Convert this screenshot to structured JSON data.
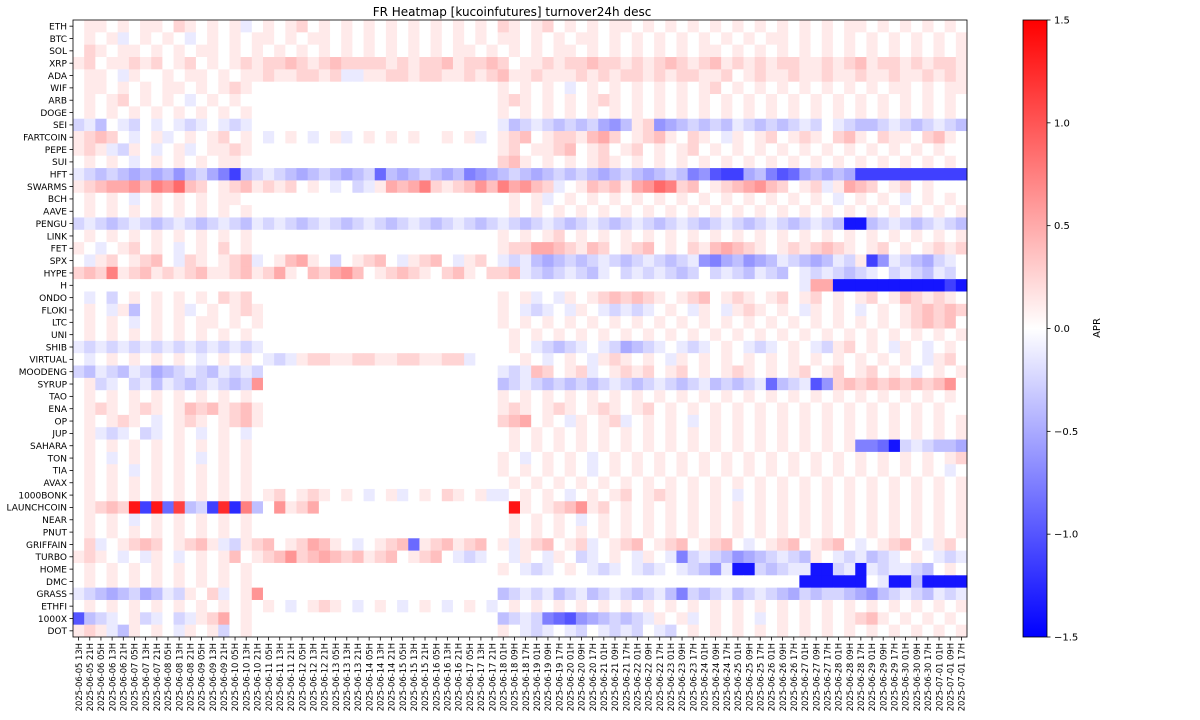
{
  "chart_data": {
    "type": "heatmap",
    "title": "FR Heatmap [kucoinfutures] turnover24h desc",
    "rows": [
      "ETH",
      "BTC",
      "SOL",
      "XRP",
      "ADA",
      "WIF",
      "ARB",
      "DOGE",
      "SEI",
      "FARTCOIN",
      "PEPE",
      "SUI",
      "HFT",
      "SWARMS",
      "BCH",
      "AAVE",
      "PENGU",
      "LINK",
      "FET",
      "SPX",
      "HYPE",
      "H",
      "ONDO",
      "FLOKI",
      "LTC",
      "UNI",
      "SHIB",
      "VIRTUAL",
      "MOODENG",
      "SYRUP",
      "TAO",
      "ENA",
      "OP",
      "JUP",
      "SAHARA",
      "TON",
      "TIA",
      "AVAX",
      "1000BONK",
      "LAUNCHCOIN",
      "NEAR",
      "PNUT",
      "GRIFFAIN",
      "TURBO",
      "HOME",
      "DMC",
      "GRASS",
      "ETHFI",
      "1000X",
      "DOT"
    ],
    "columns": [
      "2025-06-05 13H",
      "2025-06-05 21H",
      "2025-06-06 05H",
      "2025-06-06 13H",
      "2025-06-06 21H",
      "2025-06-07 05H",
      "2025-06-07 13H",
      "2025-06-07 21H",
      "2025-06-08 05H",
      "2025-06-08 13H",
      "2025-06-08 21H",
      "2025-06-09 05H",
      "2025-06-09 13H",
      "2025-06-09 21H",
      "2025-06-10 05H",
      "2025-06-10 13H",
      "2025-06-10 21H",
      "2025-06-11 05H",
      "2025-06-11 13H",
      "2025-06-11 21H",
      "2025-06-12 05H",
      "2025-06-12 13H",
      "2025-06-12 21H",
      "2025-06-13 05H",
      "2025-06-13 13H",
      "2025-06-13 21H",
      "2025-06-14 05H",
      "2025-06-14 13H",
      "2025-06-14 21H",
      "2025-06-15 05H",
      "2025-06-15 13H",
      "2025-06-15 21H",
      "2025-06-16 05H",
      "2025-06-16 13H",
      "2025-06-16 21H",
      "2025-06-17 05H",
      "2025-06-17 13H",
      "2025-06-17 21H",
      "2025-06-18 01H",
      "2025-06-18 09H",
      "2025-06-18 17H",
      "2025-06-19 01H",
      "2025-06-19 09H",
      "2025-06-19 17H",
      "2025-06-20 01H",
      "2025-06-20 09H",
      "2025-06-20 17H",
      "2025-06-21 01H",
      "2025-06-21 09H",
      "2025-06-21 17H",
      "2025-06-22 01H",
      "2025-06-22 09H",
      "2025-06-22 17H",
      "2025-06-23 01H",
      "2025-06-23 09H",
      "2025-06-23 17H",
      "2025-06-24 01H",
      "2025-06-24 09H",
      "2025-06-24 17H",
      "2025-06-25 01H",
      "2025-06-25 09H",
      "2025-06-25 17H",
      "2025-06-26 01H",
      "2025-06-26 09H",
      "2025-06-26 17H",
      "2025-06-27 01H",
      "2025-06-27 09H",
      "2025-06-27 17H",
      "2025-06-28 01H",
      "2025-06-28 09H",
      "2025-06-28 17H",
      "2025-06-29 01H",
      "2025-06-29 09H",
      "2025-06-29 17H",
      "2025-06-30 01H",
      "2025-06-30 09H",
      "2025-06-30 17H",
      "2025-07-01 01H",
      "2025-07-01 09H",
      "2025-07-01 17H"
    ],
    "value_range": [
      -1.5,
      1.5
    ],
    "colormap": "bwr",
    "colormap_colors": [
      "#0000ff",
      "#ffffff",
      "#ff0000"
    ],
    "colorbar": {
      "label": "APR",
      "ticks": [
        1.5,
        1.0,
        0.5,
        0.0,
        -0.5,
        -1.0,
        -1.5
      ],
      "tick_labels": [
        "1.5",
        "1.0",
        "0.5",
        "0.0",
        "−0.5",
        "−1.0",
        "−1.5"
      ]
    },
    "cell_value_encoding": "one string per row; each character is one column cell; A=-1.5 ... M=0.0 ... Y=+1.5 in steps of 0.125",
    "cells": [
      "MNNMNMNNMONMNMNLMNMNOMNMNMNMNMNMNMNMNMONMNOMNMNMNNMNMNMNMNMNMNMNMNMNMNNMNMNMNMN",
      "MNMNLMNMNMLMNMNMNNMNMNNMNMNMNMNMNMNMNMNNMNMNMNNMNMNMNMNMNMNMNMNNMNMNMNMNMNMNMNMNM",
      "MONMNNMNMNMNNMNMNMNMNMNMNMNMNMNMNMNNMNMNMNMNNMNMNMNMNMNMNNMNMNMNMNMNMNMNMNMNMNMNN",
      "NOMNNONOMNOMNMNONOOPONOPOOOONONOOPNOOPOMNNONOOPOONONOPONOPNONONOONNONOPNOONONOONOOP",
      "MNNMLNMMNMNNMNMNNONNOONOLLNNOONOONNONOPNNONNNONONOONONOONNOMNONNONNONNONNONNONON",
      "MNNMNMNMNNMNMNONMMMMMMMMMMMMMMMMMMMMMMNMNMNMLMNMNMNMNMNMNOMNMNMNMNMNMNMNMNNMNMNNM",
      "MNMNOMNMNMLMNMNMMMMMMMMMMMMMMMMMMMMMMMNONMNMNMNONMNMNMNMNMNMNMNMNMNMNMNMNMNMNMNMN",
      "MNMNMNMNMNMNMNMNMMMMMMMMMMMMMMMMMMMMMMNMNMNMNMNMNMNMNMNMNMNMNMNMNMNMNMNMNMNMNMNM",
      "KLJMLKMLMLKLMLKLMMMMMMMMMMMMMMMMMMMMMMLJKLKJKJKIHJNOHIJKJKJLKJKJKLKMLKJJKLKJKLKJK",
      "NOPOMLMNLMNMNOMNMLMNMLMNLMNMNMNMMNMNLMNOPMNOONPQOMNOPNMONMLNMNOMNONMOPNMONNMOPNMON",
      "NONLKNMLMNLMNNONMMMMMMMMMMMMMMMMMMMMMMNOMNNOPMNOMNOMNMNOMNMNMNMNMNMNMNMNMNMNMNM",
      "MNMNMLMNMNMNMNNMMMMMMMMMMMMMMMMMMMMMMMOPNMNMNMNONMNMNMNMNMNMNMNMNMNMNMNMNMNMNMNM",
      "LKJKJIJIJHJKIGDJKLKJIJKJIJKFJIJKJIJGHIJKJIJKJKJIJKJIJKJGHEDDIJGEFIJIJIDDDDDDDDDD",
      "NOPQQRPSRTPOMNOPNONOMNMLMKLNQPQSONOPRPSQRPOLMNPOPNQRTSOPMNOPQRPOMNOLNQPOMNOMN",
      "MNMNMLMNMNMNMNNMMMMMMMMMMMMMMMMMMMMMMMMNMNLMNMNMNMNMNMNMNMNMNMNMNMNMLMNMNMLMNMNM",
      "MNMNMNMNMNMNMNMNMMMMMMMMMMMMMMMMMMMMMMMNMNMNMNMNMNMNMNMNMNMNMNMNMNMNMNMNMNMNMNMNM",
      "KLKJKLKJKLKJKLKJLKLKJKLKJKLKJKLKJKLKJKLKJKLKJKLKJKLKJKLKJKLKJKLKJKLKJBBJKLKJKLKJ",
      "MNMNMNMNMNMNMNMNMMMMMMMMMMMMMMMMMMMMMMNMNMNOMNMNMNMNMNMNMNMNMNMNMNMNMNMNMNMNMNMNM",
      "NMLMNOMNMLMNMOMNMMMMMMMMMMMMMMMMMMMMMMNOOQQPONPOMNOPMNMONPQPONMNONOPONMNOMNMNONO",
      "MLNOMNOPMLONMNOPLMNPQNMKMNOPMLNOPMLNOMLKLJIJKJKLKJKLKJKLHGIJHIJLKJIJLKNDHLKJIKLMN",
      "OPOSNOPNONOPNNOPNOQNMPOQRPMNOPONMOPNMOOPLKJKLKJLMKLKLKJKMKLKJLKJMLKLKJKLMKLKJLK",
      "MMMMMMMMMMMMMMMMMMMMMMMMMMMMMMMMMMMMMMMMMMMMMMMMMMMMMMMMMMMMMMMMMLQQBBBBBBBBBBDBL",
      "MLMKMNMNMNMNMONOMMMMMMMMMMMMMMMMMMMMMMNMNLMLNMNOPOPONMNOPMNONMNOMNOMNMNOMNPONON",
      "MNMLNJMNMNLMNMNONMMMMMMMMMMMMMMMMMMMMMNMLKLMLNMLKLKLMNMLNMLNONMNMLNMNMLMNMNOPOPO",
      "MNMNMLMNMNMNNMNMNMMMMMMMMMMMMMMMMMMMMMNMNMNMNMNMNMNMNMNMNMNMNMNMNMNMNMNMNMNOPOP",
      "MNMNMNMNMNMNMNMNMMMMMMMMMMMMMMMMMMMMMMMNMNMNMNMNMNMNMNMNMNMNMNMNMNMNMNMNMNMNMNMNM",
      "LKLKLKLKLKLKLKLKLMMMMMMMMMMMMMMMMMMMMMMNMLKJKLMLKIJKLMLKLMNMLKLMNMLKNOMNMLNMLMNMN",
      "MLMNMNMNMNMLMNMNMLKLNOONNOONNOONNOOLMMMMNMLMNMLNONMNMLNMNMNMNMNMNMNMNMNMNMNMLNOMN",
      "KJLKJLKIJKLKJLKLKMMMMMMMMMMMMMMMMMMMMMLKLPOMNOLMNONOMNOMNMNONMNMNOMNOMNOMNMLMNMN",
      "MNKLMKLJLKJKLKJKRMMMMMMMMMMMMMMMMMMMMMJKLKJKJKJKLKJKLKJKLJKJKLFJKLEHOPOPOPOPOPRMN",
      "MNMNMNMNMNMNMNMNMMMMMMMMMMMMMMMMMMMMMMNMNMNMNMNMNMNMNMNMNMNMNMNMNMNMNMNMNMNMNMNM",
      "MNONMNONMNPOPNOPNMMMMMMMMMMMMMMMMMMMMMNONMNONMNONMNOMNMNMNMNMNMNMNMNMNMNMNMNMNM",
      "MNMNONMLMNONMNOPNMMMMMMMMMMMMMMMMMMMMMOPQMNMLNMNOLMNMNMLMNMNMNMNMNMNMNMNMNMNMNMN",
      "MNLKLMKLMNMLMNMLMMMMMMMMMMMMMMMMMMMMMMMNMNMNMNMNMNMNMNMNMNMNMNMNMNMNMNMNMNMNMNMNM",
      "MNMNMNMNMNMNMNMNMMMMMMMMMMMMMMMMMMMMMMMNMNMNMNMNMNMNMNMNMNMNMNMNMNMNMNGGFBKLKJJIH",
      "MNMLMNMNMNMLMNMNMMMMMMMMMMMMMMMMMMMMMMNMLMNMNMLMNMNMNMNMNMNMNMNMNMNMNMNMNMNMNMNOP",
      "MNMNMLMNMNMNMNMNMMMMMMMMMMMMMMMMMMMMMMNMNMNMNMLMNMNMNMNMNMNMNMNMNMNMNMNMNMNMNMLMN",
      "MNMNMNMNMNMNMNMNMMMMMMMMMMMMMMMMMMMMMMMNMNMNMNMNMNMNMNMNMNMNMNMNMNMNMNMNMNMNMNMNM",
      "MNMNMNMNMNMNMNMNMNOMNONMNMLMNLMNMONMNLLMNMNMLMNMNOMNONMNMNMLMNMNMNMNMNMNMNMNMNMNM",
      "MNOPOXDXFVJKDWCSJMRNOQMMMMMMMMMMMMMMMMMXNMNOPRNOMNMNMNMNMNMNMNMNMNMNMNMNMNMNMNMN",
      "MNMNMLMNMNMNMNMNMMMMMMMMMMMMMMMMMMMMMMMNMNMNMLMNMNMNMNMNMNMNMNMNMNMNMNMNMNMNMNMNM",
      "MNMNMNMNMNMNMNMNMMMMMMMMMMMMMMMMMMMMMMMNMNMNMNMNMNMNMNMNMNMNMNMNMNMNMNMNMNMNMNMNM",
      "MOLMNOPOMNOPNLKNOPMNOQPNMLMNOPFNOPNOPMNLNOPMNOLMNOPMNOPMNOPMLMNOPMNOPMLMNOPMLNOMK",
      "NONMLMLNMLMNMNPMNOPROPQPOPNOPMNOPMLKLMMLNMLNMKLMNMLNMLGKLKJHIJKLKJNMLKLJKLMNMLKLM",
      "MNMNMNMNMNMNMNMNMMMMMMMMMMMMMMMMMMMMMMNMLKLMNMLKLMLKLMLKJHLBBKJKLLBBKLBLKLLKJMN",
      "MNMNMNMNMNMNMNMNMMMMMMMMMMMMMMMMMMMMMMMMMMMMMMMMMMMMMMMMMMMMMMMMMBBBBBBMLBBJBBBBBBMN",
      "LKJIJKIJLKNMOLMNRMMMMMMMMMMMMMMMMMMMMMJKLKLJKLJKLKJKLJGKJKLJKLKJIKJKKJIHJKLKJLKLM",
      "MNMNMNMNMNMNMNMNMNMLMNONMLMNMLMNMLMNMLMNMNMNMNMNMNMNMNMNMNMNMNMNMNMNMNMNMNMNMNMNM",
      "EJKLMNKLMKLNOQMNMMMMMMMMMMMMMMMMMMMMMMJKLKGFEHIJKJKLNMNLMNMNMLMNMNMNMNOPNMNMNMNMN",
      "NONLJNMNMLNMNKMNMMMMMMMMMMMMMMMMMMMMMMNMLKLMLKMLKLKMLKMNMNMNMNMNMNMNMNMNMNMNMNMNM"
    ]
  }
}
